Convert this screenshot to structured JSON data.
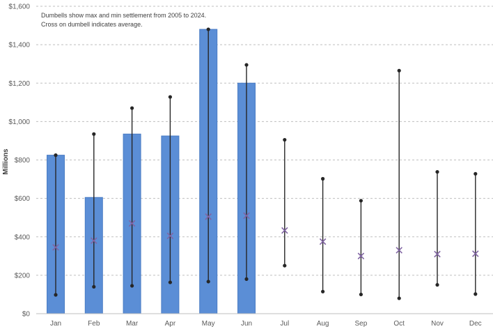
{
  "chart_data": {
    "type": "bar",
    "annotation_lines": [
      "Dumbells show max and min settlement from 2005 to 2024.",
      "Cross on dumbell indicates average."
    ],
    "ylabel": "Millions",
    "ylim": [
      0,
      1600
    ],
    "yticks": [
      0,
      200,
      400,
      600,
      800,
      1000,
      1200,
      1400,
      1600
    ],
    "ytick_labels": [
      "$0",
      "$200",
      "$400",
      "$600",
      "$800",
      "$1,000",
      "$1,200",
      "$1,400",
      "$1,600"
    ],
    "grid": true,
    "categories": [
      "Jan",
      "Feb",
      "Mar",
      "Apr",
      "May",
      "Jun",
      "Jul",
      "Aug",
      "Sep",
      "Oct",
      "Nov",
      "Dec"
    ],
    "bar_values": [
      825,
      605,
      935,
      925,
      1480,
      1200,
      null,
      null,
      null,
      null,
      null,
      null
    ],
    "max_values": [
      825,
      935,
      1070,
      1128,
      1480,
      1295,
      905,
      702,
      588,
      1265,
      738,
      728
    ],
    "min_values": [
      98,
      140,
      145,
      163,
      167,
      180,
      250,
      115,
      100,
      80,
      150,
      102
    ],
    "avg_values": [
      345,
      380,
      470,
      405,
      505,
      510,
      433,
      375,
      300,
      330,
      310,
      312
    ],
    "colors": {
      "bar": "#5B8ED6",
      "bar_stroke": "#4A7CC4",
      "dumbbell": "#262626",
      "average_marker": "#8064A2",
      "grid": "#BFBFBF",
      "axis": "#BFBFBF"
    }
  }
}
